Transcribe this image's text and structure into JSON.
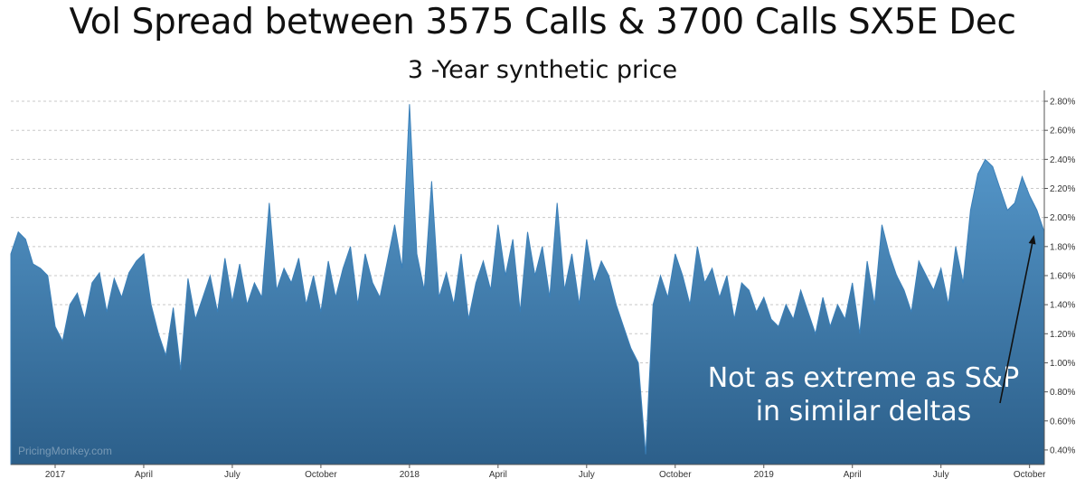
{
  "chart_data": {
    "type": "area",
    "title": "Vol Spread between 3575 Calls & 3700 Calls SX5E Dec",
    "subtitle": "3 -Year synthetic price",
    "watermark": "PricingMonkey.com",
    "x_ticks": [
      {
        "pos": 0.3,
        "label": "2017"
      },
      {
        "pos": 0.9,
        "label": "April"
      },
      {
        "pos": 1.5,
        "label": "July"
      },
      {
        "pos": 2.1,
        "label": "October"
      },
      {
        "pos": 2.7,
        "label": "2018"
      },
      {
        "pos": 3.3,
        "label": "April"
      },
      {
        "pos": 3.9,
        "label": "July"
      },
      {
        "pos": 4.5,
        "label": "October"
      },
      {
        "pos": 5.1,
        "label": "2019"
      },
      {
        "pos": 5.7,
        "label": "April"
      },
      {
        "pos": 6.3,
        "label": "July"
      },
      {
        "pos": 6.9,
        "label": "October"
      }
    ],
    "xlim": [
      0,
      7.0
    ],
    "ylim": [
      0.3,
      2.85
    ],
    "y_ticks": [
      {
        "value": 0.4,
        "label": "0.40%"
      },
      {
        "value": 0.6,
        "label": "0.60%"
      },
      {
        "value": 0.8,
        "label": "0.80%"
      },
      {
        "value": 1.0,
        "label": "1.00%"
      },
      {
        "value": 1.2,
        "label": "1.20%"
      },
      {
        "value": 1.4,
        "label": "1.40%"
      },
      {
        "value": 1.6,
        "label": "1.60%"
      },
      {
        "value": 1.8,
        "label": "1.80%"
      },
      {
        "value": 2.0,
        "label": "2.00%"
      },
      {
        "value": 2.2,
        "label": "2.20%"
      },
      {
        "value": 2.4,
        "label": "2.40%"
      },
      {
        "value": 2.6,
        "label": "2.60%"
      },
      {
        "value": 2.8,
        "label": "2.80%"
      }
    ],
    "grid": true,
    "y_axis_side": "right",
    "series": [
      {
        "color_top": "#5b9fd3",
        "color_bottom": "#2c5f8a",
        "x": [
          0.0,
          0.05,
          0.1,
          0.15,
          0.2,
          0.25,
          0.3,
          0.35,
          0.4,
          0.45,
          0.5,
          0.55,
          0.6,
          0.65,
          0.7,
          0.75,
          0.8,
          0.85,
          0.9,
          0.95,
          1.0,
          1.05,
          1.1,
          1.15,
          1.2,
          1.25,
          1.3,
          1.35,
          1.4,
          1.45,
          1.5,
          1.55,
          1.6,
          1.65,
          1.7,
          1.75,
          1.8,
          1.85,
          1.9,
          1.95,
          2.0,
          2.05,
          2.1,
          2.15,
          2.2,
          2.25,
          2.3,
          2.35,
          2.4,
          2.45,
          2.5,
          2.55,
          2.6,
          2.65,
          2.7,
          2.75,
          2.8,
          2.85,
          2.9,
          2.95,
          3.0,
          3.05,
          3.1,
          3.15,
          3.2,
          3.25,
          3.3,
          3.35,
          3.4,
          3.45,
          3.5,
          3.55,
          3.6,
          3.65,
          3.7,
          3.75,
          3.8,
          3.85,
          3.9,
          3.95,
          4.0,
          4.05,
          4.1,
          4.15,
          4.2,
          4.25,
          4.3,
          4.35,
          4.4,
          4.45,
          4.5,
          4.55,
          4.6,
          4.65,
          4.7,
          4.75,
          4.8,
          4.85,
          4.9,
          4.95,
          5.0,
          5.05,
          5.1,
          5.15,
          5.2,
          5.25,
          5.3,
          5.35,
          5.4,
          5.45,
          5.5,
          5.55,
          5.6,
          5.65,
          5.7,
          5.75,
          5.8,
          5.85,
          5.9,
          5.95,
          6.0,
          6.05,
          6.1,
          6.15,
          6.2,
          6.25,
          6.3,
          6.35,
          6.4,
          6.45,
          6.5,
          6.55,
          6.6,
          6.65,
          6.7,
          6.75,
          6.8,
          6.85,
          6.9,
          6.95,
          7.0
        ],
        "y": [
          1.75,
          1.9,
          1.85,
          1.68,
          1.65,
          1.6,
          1.25,
          1.15,
          1.4,
          1.48,
          1.3,
          1.55,
          1.62,
          1.35,
          1.58,
          1.45,
          1.62,
          1.7,
          1.75,
          1.4,
          1.2,
          1.05,
          1.38,
          0.95,
          1.58,
          1.3,
          1.45,
          1.6,
          1.35,
          1.72,
          1.42,
          1.68,
          1.4,
          1.55,
          1.45,
          2.1,
          1.5,
          1.65,
          1.55,
          1.72,
          1.4,
          1.6,
          1.35,
          1.7,
          1.45,
          1.65,
          1.8,
          1.4,
          1.75,
          1.55,
          1.45,
          1.7,
          1.95,
          1.65,
          2.78,
          1.75,
          1.5,
          2.25,
          1.45,
          1.62,
          1.4,
          1.75,
          1.3,
          1.55,
          1.7,
          1.5,
          1.95,
          1.6,
          1.85,
          1.35,
          1.9,
          1.6,
          1.8,
          1.45,
          2.1,
          1.5,
          1.75,
          1.4,
          1.85,
          1.55,
          1.7,
          1.6,
          1.4,
          1.25,
          1.1,
          1.0,
          0.37,
          1.4,
          1.6,
          1.45,
          1.75,
          1.6,
          1.4,
          1.8,
          1.55,
          1.65,
          1.45,
          1.6,
          1.3,
          1.55,
          1.5,
          1.35,
          1.45,
          1.3,
          1.25,
          1.4,
          1.3,
          1.5,
          1.35,
          1.2,
          1.45,
          1.25,
          1.4,
          1.3,
          1.55,
          1.2,
          1.7,
          1.4,
          1.95,
          1.75,
          1.6,
          1.5,
          1.35,
          1.7,
          1.6,
          1.5,
          1.65,
          1.4,
          1.8,
          1.55,
          2.05,
          2.3,
          2.4,
          2.35,
          2.2,
          2.05,
          2.1,
          2.28,
          2.15,
          2.05,
          1.9
        ],
        "name": ""
      }
    ],
    "annotation": {
      "lines": [
        "Not as extreme as S&P",
        "in similar deltas"
      ],
      "target": {
        "x": 6.93,
        "y": 1.88
      }
    }
  }
}
